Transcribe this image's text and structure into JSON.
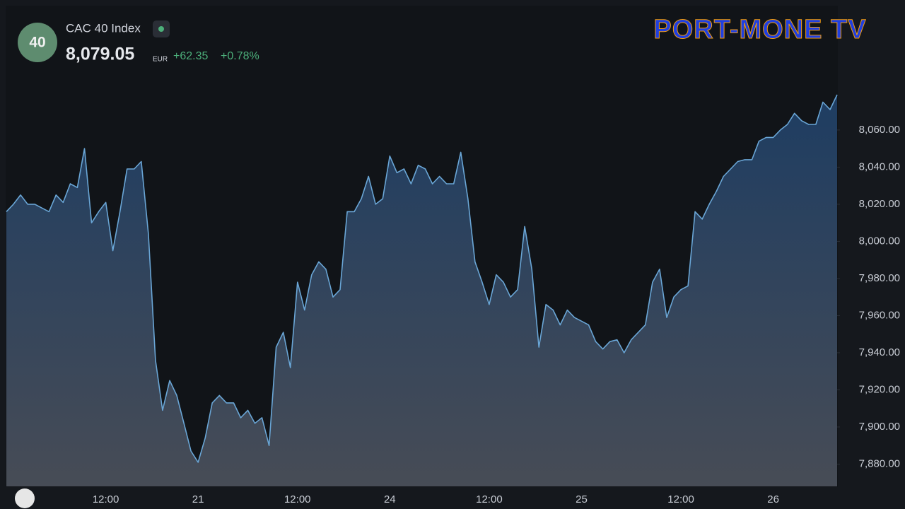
{
  "header": {
    "badge": "40",
    "name": "CAC 40 Index",
    "price": "8,079.05",
    "currency": "EUR",
    "change": "+62.35",
    "change_pct": "+0.78%"
  },
  "brand": "PORT-MONE TV",
  "chart_data": {
    "type": "area",
    "color": "#6aa6d6",
    "categories": [
      null,
      null,
      null,
      null,
      null,
      null,
      null,
      null,
      null,
      null,
      null,
      null,
      null,
      null,
      "12:00",
      null,
      null,
      null,
      null,
      null,
      null,
      null,
      null,
      null,
      null,
      null,
      null,
      "21",
      null,
      null,
      null,
      null,
      null,
      null,
      null,
      null,
      null,
      null,
      null,
      null,
      null,
      "12:00",
      null,
      null,
      null,
      null,
      null,
      null,
      null,
      null,
      null,
      null,
      null,
      null,
      "24",
      null,
      null,
      null,
      null,
      null,
      null,
      null,
      null,
      null,
      null,
      null,
      null,
      null,
      "12:00",
      null,
      null,
      null,
      null,
      null,
      null,
      null,
      null,
      null,
      null,
      null,
      null,
      "25",
      null,
      null,
      null,
      null,
      null,
      null,
      null,
      null,
      null,
      null,
      null,
      null,
      null,
      "12:00",
      null,
      null,
      null,
      null,
      null,
      null,
      null,
      null,
      null,
      null,
      null,
      null,
      "26",
      null,
      null,
      null,
      null,
      null,
      null,
      null,
      null,
      null
    ],
    "values": [
      8016,
      8020,
      8025,
      8020,
      8020,
      8018,
      8016,
      8025,
      8021,
      8031,
      8029,
      8050,
      8010,
      8016,
      8021,
      7995,
      8016,
      8039,
      8039,
      8043,
      8004,
      7936,
      7909,
      7925,
      7917,
      7902,
      7887,
      7881,
      7894,
      7913,
      7917,
      7913,
      7913,
      7905,
      7909,
      7902,
      7905,
      7890,
      7943,
      7951,
      7932,
      7978,
      7963,
      7982,
      7989,
      7985,
      7970,
      7974,
      8016,
      8016,
      8023,
      8035,
      8020,
      8023,
      8046,
      8037,
      8039,
      8031,
      8041,
      8039,
      8031,
      8035,
      8031,
      8031,
      8048,
      8023,
      7989,
      7978,
      7966,
      7982,
      7978,
      7970,
      7974,
      8008,
      7985,
      7943,
      7966,
      7963,
      7955,
      7963,
      7959,
      7957,
      7955,
      7946,
      7942,
      7946,
      7947,
      7940,
      7947,
      7951,
      7955,
      7978,
      7985,
      7959,
      7970,
      7974,
      7976,
      8016,
      8012,
      8020,
      8027,
      8035,
      8039,
      8043,
      8044,
      8044,
      8054,
      8056,
      8056,
      8060,
      8063,
      8069,
      8065,
      8063,
      8063,
      8075,
      8071,
      8079
    ],
    "ylim": [
      7868,
      8127
    ],
    "yticks": [
      {
        "value": 7880,
        "label": "7,880.00"
      },
      {
        "value": 7900,
        "label": "7,900.00"
      },
      {
        "value": 7920,
        "label": "7,920.00"
      },
      {
        "value": 7940,
        "label": "7,940.00"
      },
      {
        "value": 7960,
        "label": "7,960.00"
      },
      {
        "value": 7980,
        "label": "7,980.00"
      },
      {
        "value": 8000,
        "label": "8,000.00"
      },
      {
        "value": 8020,
        "label": "8,020.00"
      },
      {
        "value": 8040,
        "label": "8,040.00"
      },
      {
        "value": 8060,
        "label": "8,060.00"
      }
    ],
    "grid": false
  }
}
